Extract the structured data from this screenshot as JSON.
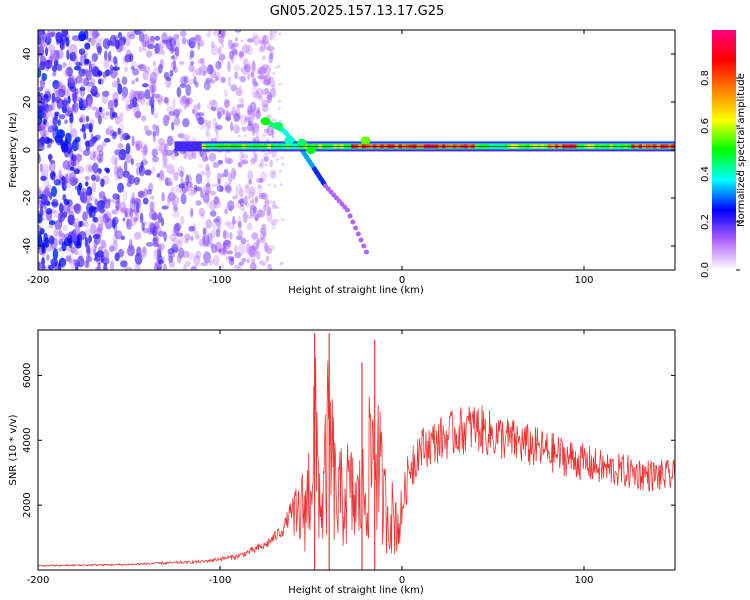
{
  "title": "GN05.2025.157.13.17.G25",
  "colors": {
    "snr_line": "#ee3333",
    "frame": "#000000"
  },
  "chart_data": [
    {
      "type": "heatmap",
      "xlabel": "Height of straight line (km)",
      "ylabel": "Frequency (Hz)",
      "xlim": [
        -200,
        150
      ],
      "ylim": [
        -50,
        50
      ],
      "xticks": [
        -200,
        -100,
        0,
        100
      ],
      "yticks": [
        -40,
        -20,
        0,
        20,
        40
      ],
      "xtick_labels": [
        "-200",
        "-100",
        "0",
        "100"
      ],
      "ytick_labels": [
        "-40",
        "-20",
        "0",
        "20",
        "40"
      ],
      "colorbar": {
        "label": "Normalized spectral amplitude",
        "range": [
          0,
          1
        ],
        "ticks": [
          0,
          0.2,
          0.4,
          0.6,
          0.8
        ],
        "tick_labels": [
          "0.0",
          "0.2",
          "0.4",
          "0.6",
          "0.8"
        ],
        "colormap": [
          "#ffffff",
          "#b060ff",
          "#0000ff",
          "#00ffff",
          "#00ff00",
          "#ffff00",
          "#ff8000",
          "#ff0000",
          "#ff0080"
        ]
      },
      "features": {
        "noise_region_x": [
          -200,
          -90
        ],
        "main_tone_x": [
          -125,
          150
        ],
        "main_tone_freq": 1.5,
        "drift_branch": [
          [
            -75,
            12
          ],
          [
            -65,
            8
          ],
          [
            -55,
            0
          ],
          [
            -48,
            -8
          ],
          [
            -42,
            -15
          ],
          [
            -30,
            -25
          ],
          [
            -18,
            -45
          ]
        ]
      }
    },
    {
      "type": "line",
      "xlabel": "Height of straight line (km)",
      "ylabel": "SNR (10 * v/v)",
      "xlim": [
        -200,
        150
      ],
      "ylim": [
        0,
        7400
      ],
      "xticks": [
        -200,
        -100,
        0,
        100
      ],
      "yticks": [
        2000,
        4000,
        6000
      ],
      "xtick_labels": [
        "-200",
        "-100",
        "0",
        "100"
      ],
      "ytick_labels": [
        "2000",
        "4000",
        "6000"
      ],
      "series": [
        {
          "envelope": [
            [
              -200,
              150
            ],
            [
              -150,
              200
            ],
            [
              -110,
              300
            ],
            [
              -90,
              500
            ],
            [
              -75,
              900
            ],
            [
              -65,
              1500
            ],
            [
              -57,
              2800
            ],
            [
              -52,
              3600
            ],
            [
              -48,
              7300
            ],
            [
              -44,
              3000
            ],
            [
              -40,
              7300
            ],
            [
              -36,
              3500
            ],
            [
              -30,
              4200
            ],
            [
              -25,
              3500
            ],
            [
              -20,
              4200
            ],
            [
              -15,
              7100
            ],
            [
              -10,
              3500
            ],
            [
              -5,
              2800
            ],
            [
              0,
              2500
            ],
            [
              5,
              4200
            ],
            [
              10,
              4400
            ],
            [
              20,
              4700
            ],
            [
              30,
              5000
            ],
            [
              40,
              5200
            ],
            [
              50,
              4900
            ],
            [
              60,
              4700
            ],
            [
              70,
              4500
            ],
            [
              80,
              4300
            ],
            [
              90,
              4100
            ],
            [
              100,
              3900
            ],
            [
              110,
              3700
            ],
            [
              120,
              3600
            ],
            [
              130,
              3500
            ],
            [
              140,
              3400
            ],
            [
              150,
              3400
            ]
          ],
          "spikes": [
            [
              -48,
              7300
            ],
            [
              -40,
              7300
            ],
            [
              -15,
              7100
            ],
            [
              -22,
              6400
            ]
          ]
        }
      ]
    }
  ]
}
